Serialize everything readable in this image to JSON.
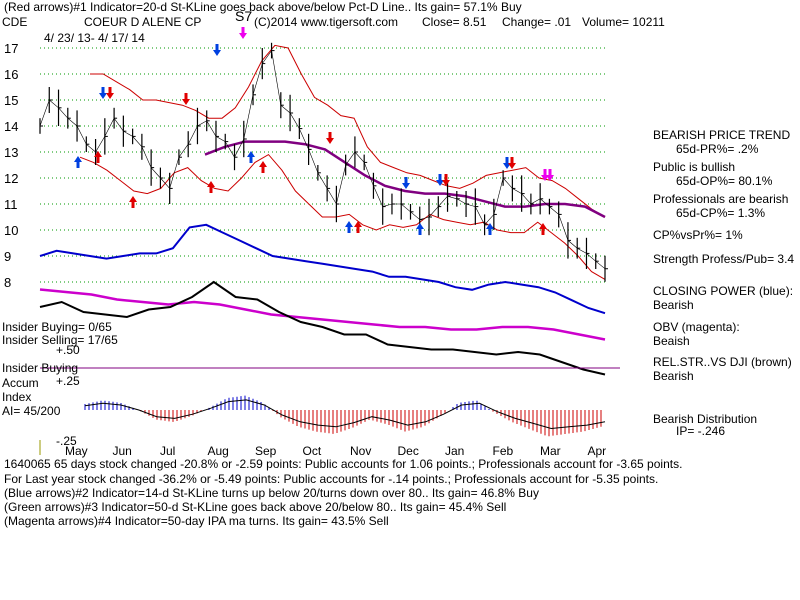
{
  "header": {
    "line1": "(Red arrows)#1 Indicator=20-d St-KLine goes back above/below Pct-D Line.. Its gain= 57.1% Buy",
    "ticker": "CDE",
    "company": "COEUR D ALENE CP",
    "s7": "S7",
    "copyright": "(C)2014 www.tigersoft.com",
    "close": "Close=  8.51",
    "change": "Change= .01",
    "volume": "Volume= 10211",
    "date_range": "4/ 23/ 13- 4/ 17/ 14"
  },
  "right_panel": {
    "trend_title": "BEARISH PRICE TREND",
    "pr": "65d-PR%= .2%",
    "public_title": "Public is bullish",
    "op": "65d-OP%= 80.1%",
    "prof_title": "Professionals are bearish",
    "cp": "65d-CP%= 1.3%",
    "cpvspr": "CP%vsPr%=  1%",
    "strength": "Strength Profess/Pub= 3.4",
    "closing_power": "CLOSING POWER (blue):",
    "closing_power_val": "Bearish",
    "obv": "OBV (magenta):",
    "obv_val": "Beaish",
    "relstr": "REL.STR..VS DJI (brown)",
    "relstr_val": "Bearish",
    "dist": "Bearish Distribution",
    "ip": "IP= -.246"
  },
  "left_labels": {
    "insider_buying_count": "Insider Buying= 0/65",
    "insider_selling_count": "Insider Selling= 17/65",
    "plus50": "+.50",
    "insider_buying": "Insider Buying",
    "accum": "Accum",
    "plus25": "+.25",
    "index": "Index",
    "ai": "AI= 45/200",
    "minus25": "-.25"
  },
  "footer": {
    "line1": "1640065 65 days stock changed -20.8% or -2.59 points:  Public accounts for  1.06 points.;  Professionals account for -3.65 points.",
    "line2": "For Last year stock changed -36.2% or -5.49 points:  Public accounts for -.14 points.;  Professionals account for -5.35 points.",
    "line3": "(Blue arrows)#2 Indicator=14-d St-KLine turns up below 20/turns down over 80.. Its gain= 46.8% Buy",
    "line4": "(Green arrows)#3 Indicator=50-d St-KLine goes back above 20/below 80.. Its gain= 45.4% Sell",
    "line5": "(Magenta arrows)#4 Indicator=50-day IPA ma turns. Its gain= 43.5% Sell"
  },
  "chart_data": {
    "type": "line",
    "y_ticks": [
      17,
      16,
      15,
      14,
      13,
      12,
      11,
      10,
      9,
      8
    ],
    "y_range": [
      8,
      17
    ],
    "x_labels": [
      "May",
      "Jun",
      "Jul",
      "Aug",
      "Sep",
      "Oct",
      "Nov",
      "Dec",
      "Jan",
      "Feb",
      "Mar",
      "Apr"
    ],
    "grid": "dotted-green",
    "price": [
      14.0,
      15.0,
      14.7,
      14.3,
      14.0,
      13.3,
      13.0,
      13.6,
      14.3,
      13.8,
      13.6,
      13.2,
      12.4,
      12.0,
      11.6,
      12.8,
      13.3,
      14.0,
      14.2,
      13.6,
      13.4,
      12.8,
      13.5,
      15.2,
      16.4,
      16.9,
      14.8,
      14.5,
      13.9,
      13.1,
      12.2,
      11.6,
      11.0,
      12.5,
      13.0,
      12.6,
      11.7,
      10.9,
      11.0,
      11.0,
      10.7,
      10.4,
      10.5,
      10.9,
      11.3,
      11.2,
      11.0,
      10.9,
      10.2,
      10.6,
      12.0,
      11.6,
      11.4,
      11.0,
      11.2,
      10.9,
      10.6,
      9.6,
      9.3,
      9.1,
      8.8,
      8.51
    ],
    "upper_band": [
      16.0,
      16.0,
      15.7,
      15.4,
      15.0,
      15.0,
      14.9,
      14.8,
      14.6,
      14.3,
      14.3,
      14.7,
      15.5,
      16.5,
      17.1,
      17.0,
      16.0,
      15.1,
      14.8,
      14.4,
      14.3,
      13.2,
      12.6,
      12.4,
      12.2,
      12.1,
      11.9,
      11.7,
      11.6,
      11.8,
      12.1,
      12.2,
      12.3,
      12.4,
      12.0,
      11.9,
      11.6,
      11.2,
      10.8,
      10.5
    ],
    "lower_band": [
      12.8,
      12.6,
      12.3,
      11.9,
      11.5,
      11.4,
      11.6,
      12.2,
      12.4,
      11.9,
      11.6,
      11.5,
      12.0,
      12.6,
      12.9,
      12.3,
      11.5,
      11.0,
      10.5,
      10.5,
      10.6,
      10.2,
      10.0,
      10.2,
      10.1,
      10.2,
      10.6,
      10.4,
      10.3,
      10.2,
      10.3,
      10.0,
      9.9,
      9.9,
      10.3,
      9.9,
      9.5,
      9.0,
      8.4,
      8.1
    ],
    "ma50": [
      12.9,
      13.2,
      13.4,
      13.4,
      13.4,
      13.3,
      13.1,
      12.6,
      12.1,
      11.7,
      11.5,
      11.4,
      11.4,
      11.3,
      11.1,
      10.9,
      10.9,
      11.0,
      11.0,
      10.9,
      10.5
    ],
    "closing_power": [
      9.0,
      9.2,
      9.1,
      9.0,
      8.9,
      9.0,
      9.1,
      9.1,
      9.3,
      10.1,
      10.2,
      9.9,
      9.6,
      9.3,
      9.0,
      8.9,
      8.8,
      8.7,
      8.6,
      8.5,
      8.4,
      8.2,
      8.2,
      8.1,
      8.0,
      7.8,
      7.7,
      7.9,
      8.0,
      7.9,
      7.8,
      7.6,
      7.3,
      7.0,
      6.8
    ],
    "obv": [
      7.7,
      7.6,
      7.5,
      7.3,
      7.2,
      7.1,
      7.2,
      7.1,
      6.9,
      6.7,
      6.6,
      6.5,
      6.4,
      6.3,
      6.2,
      6.2,
      6.1,
      6.1,
      6.2,
      6.2,
      6.1,
      5.9,
      5.7
    ],
    "rel_strength_dji": [
      7.0,
      7.2,
      6.8,
      6.7,
      6.6,
      6.9,
      7.0,
      7.4,
      8.0,
      7.4,
      7.3,
      6.8,
      6.4,
      6.2,
      5.9,
      5.9,
      5.5,
      5.4,
      5.3,
      5.3,
      5.2,
      5.1,
      5.2,
      5.1,
      4.8,
      4.5,
      4.3
    ],
    "accum_index": [
      0.05,
      0.08,
      0.06,
      0.0,
      -0.08,
      -0.1,
      -0.05,
      0.02,
      0.1,
      0.12,
      0.06,
      -0.06,
      -0.14,
      -0.18,
      -0.2,
      -0.15,
      -0.08,
      -0.12,
      -0.18,
      -0.14,
      -0.05,
      0.06,
      0.08,
      -0.02,
      -0.1,
      -0.16,
      -0.22,
      -0.2,
      -0.18,
      -0.14
    ]
  },
  "colors": {
    "price": "#000000",
    "bands": "#cc0000",
    "ma50": "#800080",
    "closing_power": "#0000cc",
    "obv": "#cc00cc",
    "rel_strength": "#000000",
    "grid": "#009900",
    "accum_pos": "#0000cc",
    "accum_neg": "#cc0000"
  },
  "arrow_colors": {
    "red": "#e00000",
    "blue": "#0040e0",
    "magenta": "#ee00ee"
  }
}
